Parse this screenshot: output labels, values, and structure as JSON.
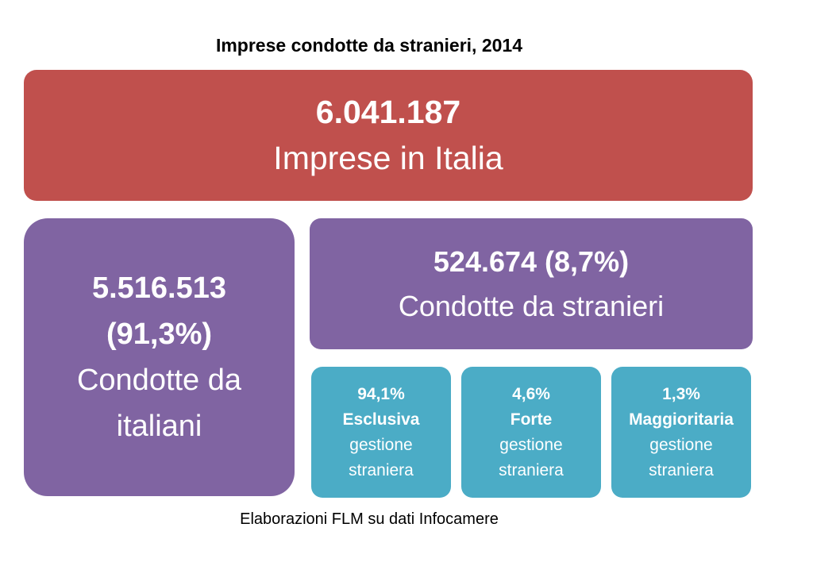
{
  "title": "Imprese condotte da stranieri, 2014",
  "colors": {
    "total": "#c0504d",
    "split": "#8064a2",
    "detail": "#4bacc6"
  },
  "total": {
    "value": "6.041.187",
    "label": "Imprese in Italia"
  },
  "italiani": {
    "value": "5.516.513",
    "percent": "(91,3%)",
    "label_1": "Condotte da",
    "label_2": "italiani"
  },
  "stranieri": {
    "value": "524.674 (8,7%)",
    "label": "Condotte da stranieri"
  },
  "breakdown": [
    {
      "percent": "94,1%",
      "type": "Esclusiva",
      "line1": "gestione",
      "line2": "straniera"
    },
    {
      "percent": "4,6%",
      "type": "Forte",
      "line1": "gestione",
      "line2": "straniera"
    },
    {
      "percent": "1,3%",
      "type": "Maggioritaria",
      "line1": "gestione",
      "line2": "straniera"
    }
  ],
  "footer": "Elaborazioni FLM su dati Infocamere"
}
